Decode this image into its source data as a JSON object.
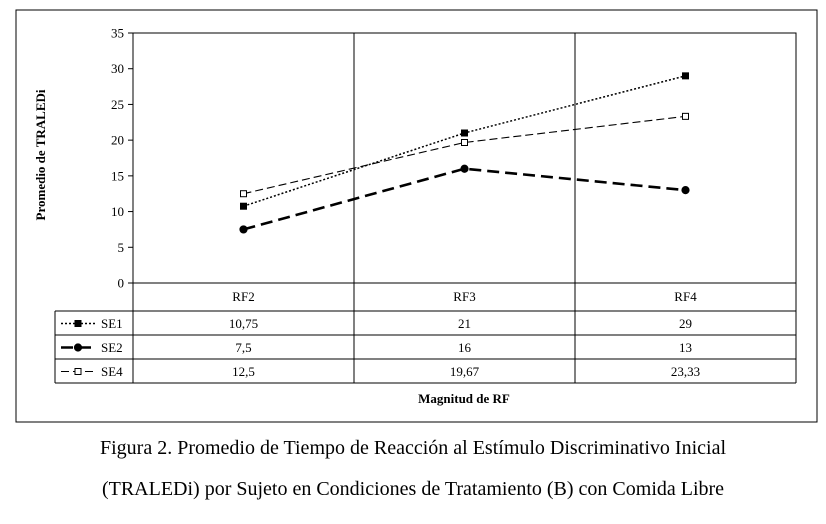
{
  "caption": {
    "line1": "Figura 2. Promedio de Tiempo de Reacción al Estímulo Discriminativo Inicial",
    "line2": "(TRALEDi) por Sujeto en Condiciones de Tratamiento (B) con Comida Libre"
  },
  "chart_data": {
    "type": "line",
    "categories": [
      "RF2",
      "RF3",
      "RF4"
    ],
    "series": [
      {
        "name": "SE1",
        "values": [
          10.75,
          21,
          29
        ],
        "labels": [
          "10,75",
          "21",
          "29"
        ],
        "style": "dotted",
        "marker": "filled-square"
      },
      {
        "name": "SE2",
        "values": [
          7.5,
          16,
          13
        ],
        "labels": [
          "7,5",
          "16",
          "13"
        ],
        "style": "long-dash",
        "marker": "filled-circle"
      },
      {
        "name": "SE4",
        "values": [
          12.5,
          19.67,
          23.33
        ],
        "labels": [
          "12,5",
          "19,67",
          "23,33"
        ],
        "style": "dash",
        "marker": "open-square"
      }
    ],
    "ylabel": "Promedio de TRALEDi",
    "xlabel": "Magnitud de RF",
    "ylim": [
      0,
      35
    ],
    "yticks": [
      "0",
      "5",
      "10",
      "15",
      "20",
      "25",
      "30",
      "35"
    ],
    "data_table": true,
    "grid": false,
    "colors": {
      "line": "#000000",
      "background": "#ffffff"
    }
  }
}
